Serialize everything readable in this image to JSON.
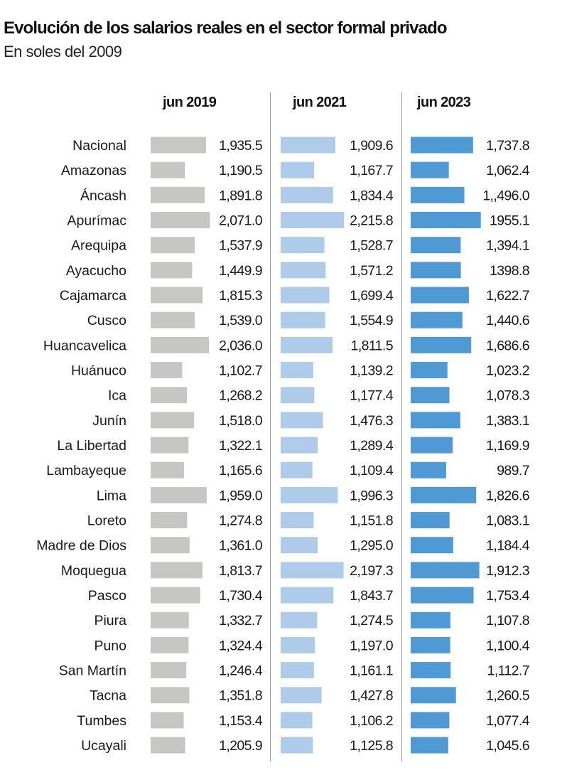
{
  "header": {
    "title": "Evolución de los salarios reales en el sector formal privado",
    "subtitle": "En soles del 2009"
  },
  "chart_data": {
    "type": "bar",
    "orientation": "horizontal",
    "title": "Evolución de los salarios reales en el sector formal privado",
    "subtitle": "En soles del 2009",
    "xlabel": "",
    "ylabel": "",
    "categories": [
      "Nacional",
      "Amazonas",
      "Áncash",
      "Apurímac",
      "Arequipa",
      "Ayacucho",
      "Cajamarca",
      "Cusco",
      "Huancavelica",
      "Huánuco",
      "Ica",
      "Junín",
      "La Libertad",
      "Lambayeque",
      "Lima",
      "Loreto",
      "Madre de Dios",
      "Moquegua",
      "Pasco",
      "Piura",
      "Puno",
      "San Martín",
      "Tacna",
      "Tumbes",
      "Ucayali"
    ],
    "series": [
      {
        "name": "jun 2019",
        "color": "#c6c6c5",
        "values": [
          1935.5,
          1190.5,
          1891.8,
          2071.0,
          1537.9,
          1449.9,
          1815.3,
          1539.0,
          2036.0,
          1102.7,
          1268.2,
          1518.0,
          1322.1,
          1165.6,
          1959.0,
          1274.8,
          1361.0,
          1813.7,
          1730.4,
          1332.7,
          1324.4,
          1246.4,
          1351.8,
          1153.4,
          1205.9
        ],
        "labels": [
          "1,935.5",
          "1,190.5",
          "1,891.8",
          "2,071.0",
          "1,537.9",
          "1,449.9",
          "1,815.3",
          "1,539.0",
          "2,036.0",
          "1,102.7",
          "1,268.2",
          "1,518.0",
          "1,322.1",
          "1,165.6",
          "1,959.0",
          "1,274.8",
          "1,361.0",
          "1,813.7",
          "1,730.4",
          "1,332.7",
          "1,324.4",
          "1,246.4",
          "1,351.8",
          "1,153.4",
          "1,205.9"
        ]
      },
      {
        "name": "jun 2021",
        "color": "#aecbea",
        "values": [
          1909.6,
          1167.7,
          1834.4,
          2215.8,
          1528.7,
          1571.2,
          1699.4,
          1554.9,
          1811.5,
          1139.2,
          1177.4,
          1476.3,
          1289.4,
          1109.4,
          1996.3,
          1151.8,
          1295.0,
          2197.3,
          1843.7,
          1274.5,
          1197.0,
          1161.1,
          1427.8,
          1106.2,
          1125.8
        ],
        "labels": [
          "1,909.6",
          "1,167.7",
          "1,834.4",
          "2,215.8",
          "1,528.7",
          "1,571.2",
          "1,699.4",
          "1,554.9",
          "1,811.5",
          "1,139.2",
          "1,177.4",
          "1,476.3",
          "1,289.4",
          "1,109.4",
          "1,996.3",
          "1,151.8",
          "1,295.0",
          "2,197.3",
          "1,843.7",
          "1,274.5",
          "1,197.0",
          "1,161.1",
          "1,427.8",
          "1,106.2",
          "1,125.8"
        ]
      },
      {
        "name": "jun 2023",
        "color": "#4f99d4",
        "values": [
          1737.8,
          1062.4,
          1496.0,
          1955.1,
          1394.1,
          1398.8,
          1622.7,
          1440.6,
          1686.6,
          1023.2,
          1078.3,
          1383.1,
          1169.9,
          989.7,
          1826.6,
          1083.1,
          1184.4,
          1912.3,
          1753.4,
          1107.8,
          1100.4,
          1112.7,
          1260.5,
          1077.4,
          1045.6
        ],
        "labels": [
          "1,737.8",
          "1,062.4",
          "1,,496.0",
          "1955.1",
          "1,394.1",
          "1398.8",
          "1,622.7",
          "1,440.6",
          "1,686.6",
          "1,023.2",
          "1,078.3",
          "1,383.1",
          "1,169.9",
          "989.7",
          "1,826.6",
          "1,083.1",
          "1,184.4",
          "1,912.3",
          "1,753.4",
          "1,107.8",
          "1,100.4",
          "1,112.7",
          "1,260.5",
          "1,077.4",
          "1,045.6"
        ]
      }
    ],
    "grid": false,
    "legend": "column-headers-top"
  }
}
